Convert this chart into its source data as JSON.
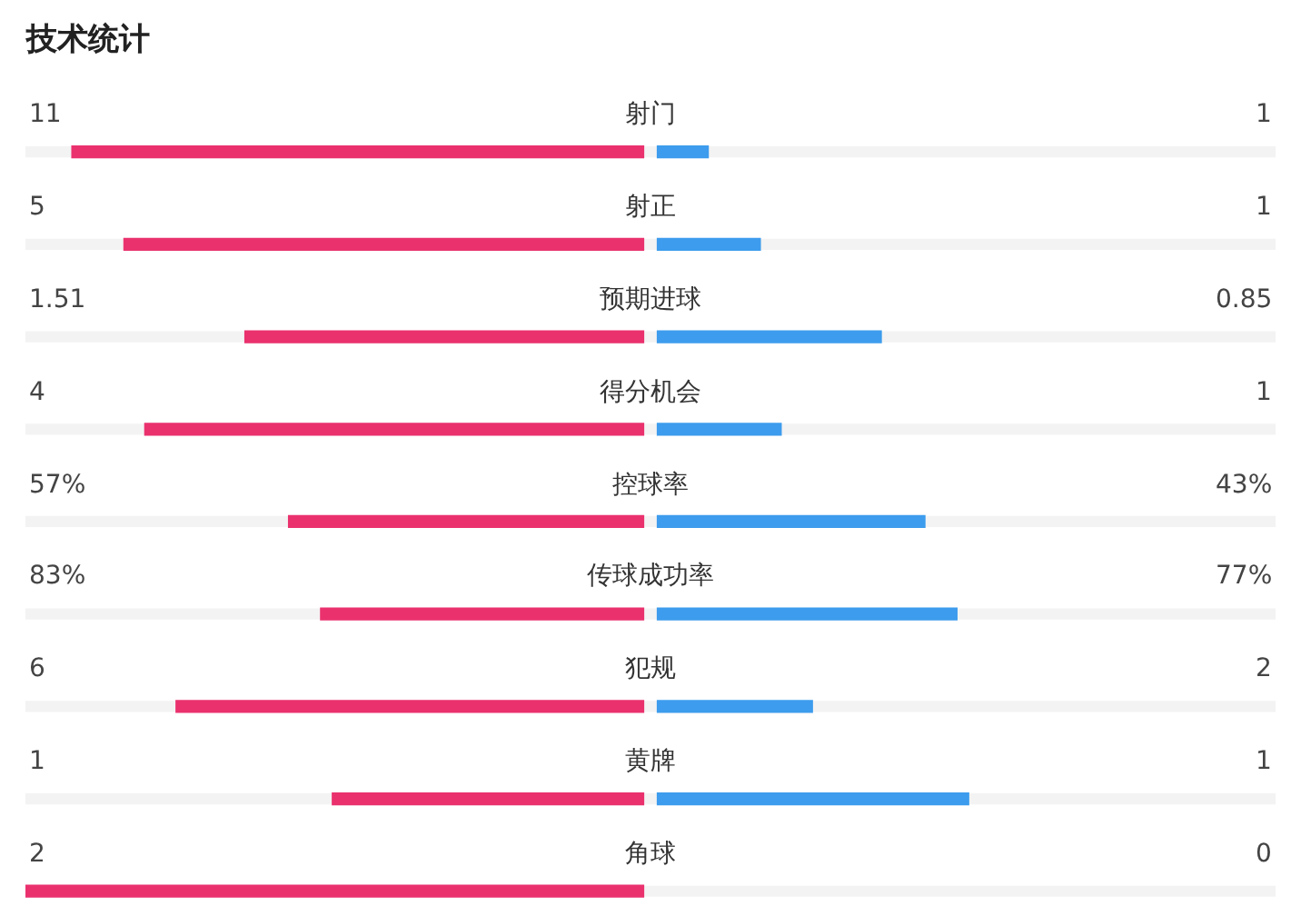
{
  "chart_data": {
    "type": "other",
    "title": "技术统计",
    "categories": [
      "射门",
      "射正",
      "预期进球",
      "得分机会",
      "控球率",
      "传球成功率",
      "犯规",
      "黄牌",
      "角球"
    ],
    "series": [
      {
        "color": "#ea316e",
        "values": [
          11,
          5,
          1.51,
          4,
          57,
          83,
          6,
          1,
          2
        ],
        "value_labels": [
          "11",
          "5",
          "1.51",
          "4",
          "57%",
          "83%",
          "6",
          "1",
          "2"
        ]
      },
      {
        "color": "#3d9ced",
        "values": [
          1,
          1,
          0.85,
          1,
          43,
          77,
          2,
          1,
          0
        ],
        "value_labels": [
          "1",
          "1",
          "0.85",
          "1",
          "43%",
          "77%",
          "2",
          "1",
          "0"
        ]
      }
    ]
  }
}
